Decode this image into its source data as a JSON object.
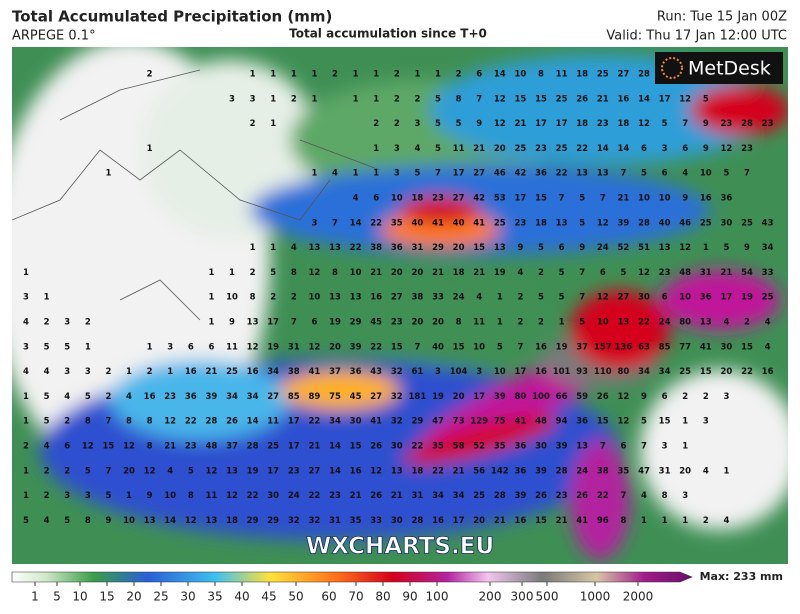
{
  "header": {
    "title": "Total Accumulated Precipitation (mm)",
    "model": "ARPEGE 0.1°",
    "subtitle": "Total accumulation since T+0",
    "run": "Run: Tue 15 Jan 00Z",
    "valid": "Valid: Thu 17 Jan 12:00 UTC"
  },
  "logo": "MetDesk",
  "watermark": "WXCHARTS.EU",
  "legend": {
    "max": "Max: 233 mm",
    "ticks": [
      1,
      5,
      10,
      15,
      20,
      25,
      30,
      35,
      40,
      45,
      50,
      60,
      70,
      80,
      90,
      100,
      200,
      300,
      500,
      1000,
      2000
    ]
  },
  "map": {
    "grid": [
      [
        null,
        null,
        null,
        null,
        null,
        null,
        2,
        null,
        null,
        null,
        null,
        1,
        1,
        1,
        1,
        2,
        1,
        1,
        2,
        1,
        1,
        2,
        6,
        14,
        10,
        8,
        11,
        18,
        25,
        27,
        28
      ],
      [
        null,
        null,
        null,
        null,
        null,
        null,
        null,
        null,
        null,
        null,
        3,
        3,
        1,
        2,
        1,
        null,
        1,
        1,
        2,
        2,
        5,
        8,
        7,
        12,
        15,
        15,
        25,
        26,
        21,
        16,
        14,
        17,
        12,
        5
      ],
      [
        null,
        null,
        null,
        null,
        null,
        null,
        null,
        null,
        null,
        null,
        null,
        2,
        1,
        null,
        null,
        null,
        null,
        2,
        2,
        3,
        5,
        5,
        9,
        12,
        21,
        17,
        17,
        18,
        23,
        18,
        12,
        5,
        7,
        9,
        23,
        28,
        23
      ],
      [
        null,
        null,
        null,
        null,
        null,
        null,
        1,
        null,
        null,
        null,
        null,
        null,
        null,
        null,
        null,
        null,
        null,
        1,
        3,
        4,
        5,
        11,
        21,
        20,
        25,
        23,
        25,
        22,
        14,
        14,
        6,
        3,
        6,
        9,
        12,
        23
      ],
      [
        null,
        null,
        null,
        null,
        1,
        null,
        null,
        null,
        null,
        null,
        null,
        null,
        null,
        null,
        1,
        4,
        1,
        1,
        3,
        5,
        7,
        17,
        27,
        46,
        42,
        36,
        22,
        13,
        13,
        7,
        5,
        6,
        4,
        10,
        5,
        7
      ],
      [
        null,
        null,
        null,
        null,
        null,
        null,
        null,
        null,
        null,
        null,
        null,
        null,
        null,
        null,
        null,
        null,
        4,
        6,
        10,
        18,
        23,
        27,
        42,
        53,
        17,
        15,
        7,
        5,
        7,
        21,
        10,
        10,
        9,
        16,
        36
      ],
      [
        null,
        null,
        null,
        null,
        null,
        null,
        null,
        null,
        null,
        null,
        null,
        null,
        null,
        null,
        3,
        7,
        14,
        22,
        35,
        40,
        41,
        40,
        41,
        25,
        23,
        18,
        13,
        5,
        12,
        39,
        28,
        40,
        46,
        25,
        30,
        25,
        43
      ],
      [
        null,
        null,
        null,
        null,
        null,
        null,
        null,
        null,
        null,
        null,
        null,
        1,
        1,
        4,
        13,
        13,
        22,
        38,
        36,
        31,
        29,
        20,
        15,
        13,
        9,
        5,
        6,
        9,
        24,
        52,
        51,
        13,
        12,
        1,
        5,
        9,
        34
      ],
      [
        1,
        null,
        null,
        null,
        null,
        null,
        null,
        null,
        null,
        1,
        1,
        2,
        5,
        8,
        12,
        8,
        10,
        21,
        20,
        20,
        21,
        18,
        21,
        19,
        4,
        2,
        5,
        7,
        6,
        5,
        12,
        23,
        48,
        31,
        21,
        54,
        33
      ],
      [
        3,
        1,
        null,
        null,
        null,
        null,
        null,
        null,
        null,
        1,
        10,
        8,
        2,
        2,
        10,
        13,
        13,
        16,
        27,
        38,
        33,
        24,
        4,
        1,
        2,
        5,
        5,
        7,
        12,
        27,
        30,
        6,
        10,
        36,
        17,
        19,
        25
      ],
      [
        4,
        2,
        3,
        2,
        null,
        null,
        null,
        null,
        null,
        1,
        9,
        13,
        17,
        7,
        6,
        19,
        29,
        45,
        23,
        20,
        20,
        8,
        11,
        1,
        2,
        2,
        1,
        5,
        10,
        13,
        22,
        24,
        80,
        13,
        4,
        2,
        4
      ],
      [
        3,
        5,
        5,
        1,
        null,
        null,
        1,
        3,
        6,
        6,
        11,
        12,
        19,
        31,
        12,
        20,
        39,
        22,
        15,
        7,
        40,
        15,
        10,
        5,
        7,
        16,
        19,
        37,
        157,
        136,
        63,
        85,
        77,
        41,
        30,
        15,
        4
      ],
      [
        4,
        4,
        3,
        3,
        2,
        1,
        2,
        1,
        16,
        21,
        25,
        16,
        34,
        38,
        41,
        37,
        36,
        43,
        32,
        61,
        3,
        104,
        3,
        10,
        17,
        16,
        101,
        93,
        110,
        80,
        34,
        34,
        25,
        15,
        20,
        22,
        16
      ],
      [
        1,
        5,
        4,
        5,
        2,
        4,
        16,
        23,
        36,
        39,
        34,
        34,
        27,
        85,
        89,
        75,
        45,
        27,
        32,
        181,
        19,
        20,
        17,
        39,
        80,
        100,
        66,
        59,
        26,
        12,
        9,
        6,
        2,
        2,
        3
      ],
      [
        1,
        5,
        2,
        8,
        7,
        8,
        8,
        12,
        22,
        28,
        26,
        14,
        11,
        17,
        22,
        34,
        30,
        41,
        32,
        29,
        47,
        73,
        129,
        75,
        41,
        48,
        94,
        36,
        15,
        12,
        5,
        15,
        1,
        3
      ],
      [
        2,
        4,
        6,
        12,
        15,
        12,
        8,
        21,
        23,
        48,
        37,
        28,
        25,
        17,
        21,
        14,
        15,
        26,
        30,
        22,
        35,
        58,
        52,
        35,
        36,
        30,
        39,
        13,
        7,
        6,
        7,
        3,
        1
      ],
      [
        1,
        2,
        2,
        5,
        7,
        20,
        12,
        4,
        5,
        12,
        13,
        19,
        17,
        23,
        27,
        14,
        16,
        12,
        13,
        18,
        22,
        21,
        56,
        142,
        36,
        39,
        28,
        24,
        38,
        35,
        47,
        31,
        20,
        4,
        1
      ],
      [
        1,
        2,
        3,
        3,
        5,
        1,
        9,
        10,
        8,
        11,
        12,
        22,
        30,
        24,
        22,
        23,
        21,
        26,
        21,
        31,
        34,
        34,
        25,
        28,
        39,
        26,
        23,
        26,
        22,
        7,
        4,
        8,
        3
      ],
      [
        5,
        4,
        5,
        8,
        9,
        10,
        13,
        14,
        12,
        13,
        18,
        29,
        29,
        32,
        32,
        31,
        35,
        33,
        30,
        28,
        16,
        17,
        20,
        21,
        16,
        15,
        21,
        41,
        96,
        8,
        1,
        1,
        1,
        2,
        4
      ]
    ]
  }
}
